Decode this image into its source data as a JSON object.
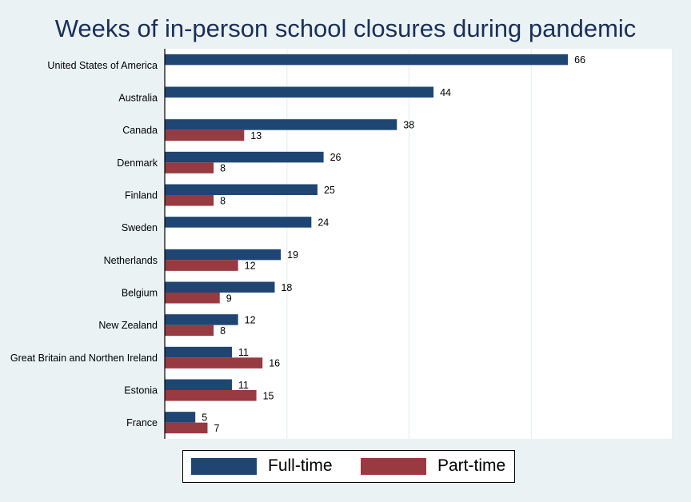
{
  "chart_data": {
    "type": "bar",
    "orientation": "horizontal",
    "title": "Weeks of in-person school closures during pandemic",
    "categories": [
      "United States of America",
      "Australia",
      "Canada",
      "Denmark",
      "Finland",
      "Sweden",
      "Netherlands",
      "Belgium",
      "New Zealand",
      "Great Britain and Northen Ireland",
      "Estonia",
      "France"
    ],
    "series": [
      {
        "name": "Full-time",
        "color": "#1f4673",
        "values": [
          66,
          44,
          38,
          26,
          25,
          24,
          19,
          18,
          12,
          11,
          11,
          5
        ]
      },
      {
        "name": "Part-time",
        "color": "#973a42",
        "values": [
          null,
          null,
          13,
          8,
          8,
          null,
          12,
          9,
          8,
          16,
          15,
          7
        ]
      }
    ],
    "xlim": [
      0,
      83
    ],
    "grid": true,
    "legend_position": "bottom"
  }
}
